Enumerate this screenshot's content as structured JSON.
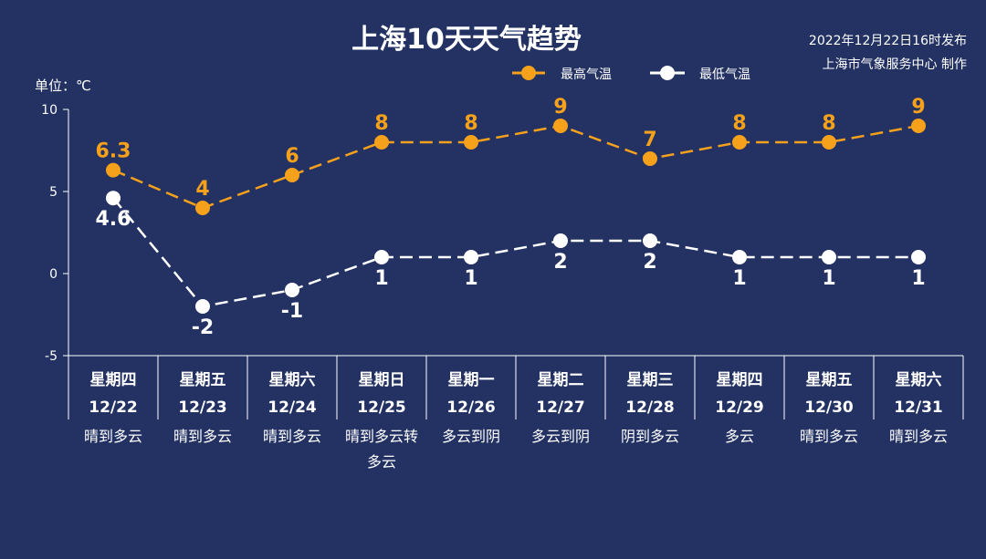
{
  "chart_data": {
    "type": "line",
    "title": "上海10天天气趋势",
    "publish_time": "2022年12月22日16时发布",
    "producer": "上海市气象服务中心 制作",
    "unit_label": "单位：℃",
    "ylim": [
      -5,
      10
    ],
    "yticks": [
      10,
      5,
      0,
      -5
    ],
    "categories": [
      {
        "weekday": "星期四",
        "date": "12/22",
        "weather": [
          "晴到多云"
        ]
      },
      {
        "weekday": "星期五",
        "date": "12/23",
        "weather": [
          "晴到多云"
        ]
      },
      {
        "weekday": "星期六",
        "date": "12/24",
        "weather": [
          "晴到多云"
        ]
      },
      {
        "weekday": "星期日",
        "date": "12/25",
        "weather": [
          "晴到多云转",
          "多云"
        ]
      },
      {
        "weekday": "星期一",
        "date": "12/26",
        "weather": [
          "多云到阴"
        ]
      },
      {
        "weekday": "星期二",
        "date": "12/27",
        "weather": [
          "多云到阴"
        ]
      },
      {
        "weekday": "星期三",
        "date": "12/28",
        "weather": [
          "阴到多云"
        ]
      },
      {
        "weekday": "星期四",
        "date": "12/29",
        "weather": [
          "多云"
        ]
      },
      {
        "weekday": "星期五",
        "date": "12/30",
        "weather": [
          "晴到多云"
        ]
      },
      {
        "weekday": "星期六",
        "date": "12/31",
        "weather": [
          "晴到多云"
        ]
      }
    ],
    "series": [
      {
        "name": "最高气温",
        "color": "#f5a11c",
        "values": [
          6.3,
          4,
          6,
          8,
          8,
          9,
          7,
          8,
          8,
          9
        ]
      },
      {
        "name": "最低气温",
        "color": "#ffffff",
        "values": [
          4.6,
          -2,
          -1,
          1,
          1,
          2,
          2,
          1,
          1,
          1
        ]
      }
    ],
    "legend_position": "top-right",
    "grid": false
  }
}
